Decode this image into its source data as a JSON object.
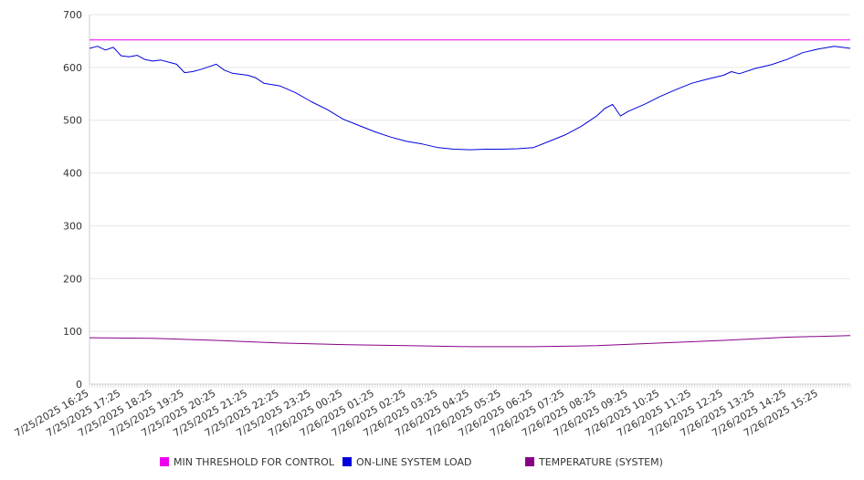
{
  "chart_data": {
    "type": "line",
    "title": "",
    "xlabel": "",
    "ylabel": "",
    "ylim": [
      0,
      700
    ],
    "yticks": [
      0,
      100,
      200,
      300,
      400,
      500,
      600,
      700
    ],
    "grid": true,
    "legend_position": "bottom",
    "x_start": "7/25/2025 16:25",
    "x_end": "7/26/2025 16:25",
    "xtick_labels": [
      "7/25/2025 16:25",
      "7/25/2025 17:25",
      "7/25/2025 18:25",
      "7/25/2025 19:25",
      "7/25/2025 20:25",
      "7/25/2025 21:25",
      "7/25/2025 22:25",
      "7/25/2025 23:25",
      "7/26/2025 00:25",
      "7/26/2025 01:25",
      "7/26/2025 02:25",
      "7/26/2025 03:25",
      "7/26/2025 04:25",
      "7/26/2025 05:25",
      "7/26/2025 06:25",
      "7/26/2025 07:25",
      "7/26/2025 08:25",
      "7/26/2025 09:25",
      "7/26/2025 10:25",
      "7/26/2025 11:25",
      "7/26/2025 12:25",
      "7/26/2025 13:25",
      "7/26/2025 14:25",
      "7/26/2025 15:25"
    ],
    "series": [
      {
        "name": "MIN THRESHOLD FOR CONTROL",
        "color": "#ee00ee",
        "x": [
          "7/25/2025 16:25",
          "7/26/2025 16:25"
        ],
        "values": [
          652,
          652
        ]
      },
      {
        "name": "ON-LINE SYSTEM LOAD",
        "color": "#0000dd",
        "x": [
          "7/25/2025 16:25",
          "7/25/2025 16:40",
          "7/25/2025 16:55",
          "7/25/2025 17:10",
          "7/25/2025 17:25",
          "7/25/2025 17:40",
          "7/25/2025 17:55",
          "7/25/2025 18:10",
          "7/25/2025 18:25",
          "7/25/2025 18:40",
          "7/25/2025 18:55",
          "7/25/2025 19:10",
          "7/25/2025 19:25",
          "7/25/2025 19:40",
          "7/25/2025 19:55",
          "7/25/2025 20:10",
          "7/25/2025 20:25",
          "7/25/2025 20:40",
          "7/25/2025 20:55",
          "7/25/2025 21:25",
          "7/25/2025 21:40",
          "7/25/2025 21:55",
          "7/25/2025 22:25",
          "7/25/2025 22:55",
          "7/25/2025 23:25",
          "7/25/2025 23:55",
          "7/26/2025 00:25",
          "7/26/2025 00:55",
          "7/26/2025 01:25",
          "7/26/2025 01:55",
          "7/26/2025 02:25",
          "7/26/2025 02:55",
          "7/26/2025 03:25",
          "7/26/2025 03:55",
          "7/26/2025 04:25",
          "7/26/2025 04:55",
          "7/26/2025 05:25",
          "7/26/2025 05:55",
          "7/26/2025 06:25",
          "7/26/2025 06:55",
          "7/26/2025 07:25",
          "7/26/2025 07:55",
          "7/26/2025 08:25",
          "7/26/2025 08:40",
          "7/26/2025 08:55",
          "7/26/2025 09:10",
          "7/26/2025 09:25",
          "7/26/2025 09:55",
          "7/26/2025 10:25",
          "7/26/2025 10:55",
          "7/26/2025 11:25",
          "7/26/2025 11:55",
          "7/26/2025 12:25",
          "7/26/2025 12:40",
          "7/26/2025 12:55",
          "7/26/2025 13:25",
          "7/26/2025 13:55",
          "7/26/2025 14:25",
          "7/26/2025 14:55",
          "7/26/2025 15:25",
          "7/26/2025 15:55",
          "7/26/2025 16:25"
        ],
        "values": [
          636,
          640,
          633,
          638,
          622,
          620,
          623,
          615,
          612,
          614,
          610,
          606,
          590,
          592,
          596,
          601,
          606,
          595,
          589,
          585,
          580,
          570,
          565,
          552,
          535,
          520,
          502,
          490,
          478,
          468,
          460,
          455,
          448,
          445,
          444,
          445,
          445,
          446,
          448,
          460,
          472,
          488,
          508,
          522,
          530,
          508,
          517,
          530,
          545,
          558,
          570,
          578,
          585,
          592,
          588,
          598,
          605,
          615,
          628,
          635,
          640,
          636
        ]
      },
      {
        "name": "TEMPERATURE (SYSTEM)",
        "color": "#880088",
        "x": [
          "7/25/2025 16:25",
          "7/25/2025 18:25",
          "7/25/2025 20:25",
          "7/25/2025 22:25",
          "7/26/2025 00:25",
          "7/26/2025 02:25",
          "7/26/2025 04:25",
          "7/26/2025 06:25",
          "7/26/2025 08:25",
          "7/26/2025 10:25",
          "7/26/2025 12:25",
          "7/26/2025 14:25",
          "7/26/2025 16:25"
        ],
        "values": [
          88,
          87,
          83,
          78,
          75,
          73,
          71,
          71,
          73,
          78,
          83,
          89,
          92
        ]
      }
    ]
  }
}
